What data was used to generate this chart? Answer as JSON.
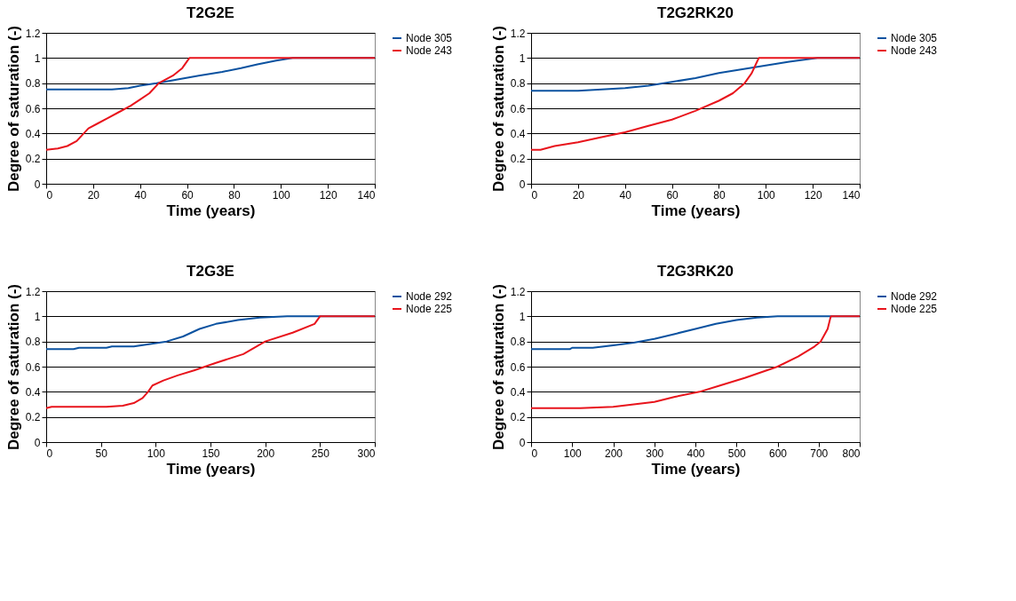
{
  "chart_data": [
    {
      "type": "line",
      "title": "T2G2E",
      "xlabel": "Time (years)",
      "ylabel": "Degree of saturation (-)",
      "xlim": [
        0,
        140
      ],
      "xticks": [
        0,
        20,
        40,
        60,
        80,
        100,
        120,
        140
      ],
      "ylim": [
        0,
        1.2
      ],
      "yticks": [
        0,
        0.2,
        0.4,
        0.6,
        0.8,
        1,
        1.2
      ],
      "grid": "y",
      "legend": "right",
      "series": [
        {
          "name": "Node 305",
          "color": "#0b52a0",
          "x": [
            0,
            28,
            35,
            40,
            47,
            56,
            65,
            75,
            83,
            90,
            98,
            105,
            140
          ],
          "values": [
            0.75,
            0.75,
            0.76,
            0.78,
            0.8,
            0.83,
            0.86,
            0.89,
            0.92,
            0.95,
            0.98,
            1.0,
            1.0
          ]
        },
        {
          "name": "Node 243",
          "color": "#e8141c",
          "x": [
            0,
            5,
            9,
            13,
            15,
            18,
            22,
            26,
            31,
            36,
            40,
            44,
            48,
            54,
            58,
            61,
            140
          ],
          "values": [
            0.27,
            0.28,
            0.3,
            0.34,
            0.38,
            0.44,
            0.48,
            0.52,
            0.57,
            0.62,
            0.67,
            0.72,
            0.8,
            0.86,
            0.92,
            1.0,
            1.0
          ]
        }
      ]
    },
    {
      "type": "line",
      "title": "T2G2RK20",
      "xlabel": "Time (years)",
      "ylabel": "Degree of saturation (-)",
      "xlim": [
        0,
        140
      ],
      "xticks": [
        0,
        20,
        40,
        60,
        80,
        100,
        120,
        140
      ],
      "ylim": [
        0,
        1.2
      ],
      "yticks": [
        0,
        0.2,
        0.4,
        0.6,
        0.8,
        1,
        1.2
      ],
      "grid": "y",
      "legend": "right",
      "series": [
        {
          "name": "Node 305",
          "color": "#0b52a0",
          "x": [
            0,
            20,
            30,
            40,
            50,
            60,
            70,
            80,
            90,
            100,
            110,
            122,
            140
          ],
          "values": [
            0.74,
            0.74,
            0.75,
            0.76,
            0.78,
            0.81,
            0.84,
            0.88,
            0.91,
            0.94,
            0.97,
            1.0,
            1.0
          ]
        },
        {
          "name": "Node 243",
          "color": "#e8141c",
          "x": [
            0,
            4,
            10,
            20,
            30,
            40,
            50,
            60,
            70,
            80,
            86,
            91,
            94,
            96,
            97,
            140
          ],
          "values": [
            0.27,
            0.27,
            0.3,
            0.33,
            0.37,
            0.41,
            0.46,
            0.51,
            0.58,
            0.66,
            0.72,
            0.8,
            0.88,
            0.96,
            1.0,
            1.0
          ]
        }
      ]
    },
    {
      "type": "line",
      "title": "T2G3E",
      "xlabel": "Time (years)",
      "ylabel": "Degree of saturation (-)",
      "xlim": [
        0,
        300
      ],
      "xticks": [
        0,
        50,
        100,
        150,
        200,
        250,
        300
      ],
      "ylim": [
        0,
        1.2
      ],
      "yticks": [
        0,
        0.2,
        0.4,
        0.6,
        0.8,
        1,
        1.2
      ],
      "grid": "y",
      "legend": "right",
      "series": [
        {
          "name": "Node 292",
          "color": "#0b52a0",
          "x": [
            0,
            25,
            30,
            55,
            60,
            80,
            95,
            110,
            125,
            140,
            155,
            175,
            195,
            220,
            300
          ],
          "values": [
            0.74,
            0.74,
            0.75,
            0.75,
            0.76,
            0.76,
            0.78,
            0.8,
            0.84,
            0.9,
            0.94,
            0.97,
            0.99,
            1.0,
            1.0
          ]
        },
        {
          "name": "Node 225",
          "color": "#e8141c",
          "x": [
            0,
            5,
            55,
            70,
            80,
            88,
            93,
            97,
            107,
            120,
            135,
            155,
            180,
            200,
            225,
            245,
            250,
            300
          ],
          "values": [
            0.27,
            0.28,
            0.28,
            0.29,
            0.31,
            0.35,
            0.4,
            0.45,
            0.49,
            0.53,
            0.57,
            0.63,
            0.7,
            0.8,
            0.87,
            0.94,
            1.0,
            1.0
          ]
        }
      ]
    },
    {
      "type": "line",
      "title": "T2G3RK20",
      "xlabel": "Time (years)",
      "ylabel": "Degree of saturation (-)",
      "xlim": [
        0,
        800
      ],
      "xticks": [
        0,
        100,
        200,
        300,
        400,
        500,
        600,
        700,
        800
      ],
      "ylim": [
        0,
        1.2
      ],
      "yticks": [
        0,
        0.2,
        0.4,
        0.6,
        0.8,
        1,
        1.2
      ],
      "grid": "y",
      "legend": "right",
      "series": [
        {
          "name": "Node 292",
          "color": "#0b52a0",
          "x": [
            0,
            95,
            100,
            150,
            200,
            250,
            300,
            350,
            400,
            450,
            500,
            550,
            600,
            800
          ],
          "values": [
            0.74,
            0.74,
            0.75,
            0.75,
            0.77,
            0.79,
            0.82,
            0.86,
            0.9,
            0.94,
            0.97,
            0.99,
            1.0,
            1.0
          ]
        },
        {
          "name": "Node 225",
          "color": "#e8141c",
          "x": [
            0,
            120,
            200,
            250,
            300,
            350,
            410,
            460,
            520,
            600,
            650,
            690,
            705,
            722,
            728,
            730,
            800
          ],
          "values": [
            0.27,
            0.27,
            0.28,
            0.3,
            0.32,
            0.36,
            0.4,
            0.45,
            0.51,
            0.6,
            0.68,
            0.76,
            0.8,
            0.9,
            0.98,
            1.0,
            1.0
          ]
        }
      ]
    }
  ]
}
